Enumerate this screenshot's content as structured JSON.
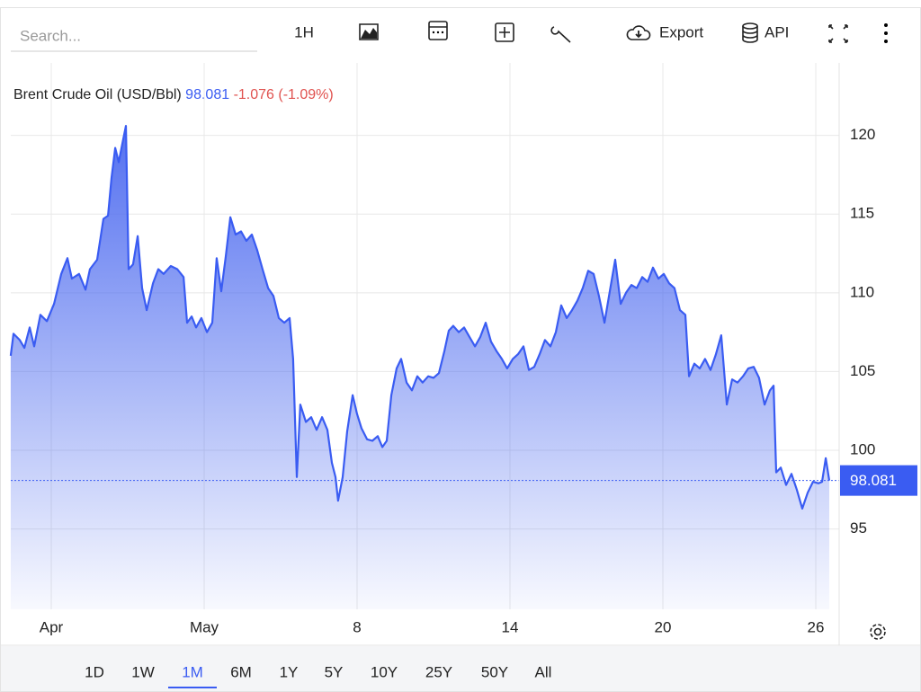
{
  "toolbar": {
    "search_placeholder": "Search...",
    "interval": "1H",
    "export": "Export",
    "api": "API"
  },
  "ranges": {
    "items": [
      "1D",
      "1W",
      "1M",
      "6M",
      "1Y",
      "5Y",
      "10Y",
      "25Y",
      "50Y",
      "All"
    ],
    "active": 2
  },
  "chart_data": {
    "type": "area",
    "title": "Brent Crude Oil (USD/Bbl)",
    "last_value": 98.081,
    "change": "-1.076 (-1.09%)",
    "color": "#3a5cf2",
    "grid": true,
    "x": [
      0.35,
      0.53,
      0.94,
      1.24,
      1.59,
      1.88,
      2.29,
      2.71,
      3.18,
      3.65,
      4.06,
      4.35,
      4.82,
      5.24,
      5.53,
      6.0,
      6.41,
      6.71,
      6.94,
      7.18,
      7.41,
      7.65,
      7.88,
      8.06,
      8.35,
      8.65,
      8.94,
      9.24,
      9.65,
      10.0,
      10.35,
      10.82,
      11.24,
      11.65,
      11.88,
      12.18,
      12.47,
      12.82,
      13.18,
      13.53,
      13.82,
      14.12,
      14.41,
      14.71,
      15.06,
      15.41,
      15.76,
      16.12,
      16.47,
      16.82,
      17.18,
      17.53,
      17.88,
      18.24,
      18.59,
      18.82,
      19.06,
      19.29,
      19.65,
      20.0,
      20.35,
      20.71,
      21.06,
      21.35,
      21.59,
      21.76,
      22.06,
      22.35,
      22.71,
      23.0,
      23.29,
      23.65,
      24.0,
      24.35,
      24.65,
      24.94,
      25.24,
      25.59,
      25.88,
      26.24,
      26.59,
      26.94,
      27.29,
      27.65,
      28.0,
      28.35,
      28.71,
      29.0,
      29.29,
      29.65,
      30.0,
      30.35,
      30.71,
      31.06,
      31.41,
      31.76,
      32.12,
      32.47,
      32.82,
      33.18,
      33.53,
      33.88,
      34.24,
      34.59,
      34.94,
      35.29,
      35.65,
      36.0,
      36.35,
      36.71,
      37.06,
      37.41,
      37.76,
      38.12,
      38.47,
      38.82,
      39.18,
      39.53,
      39.88,
      40.24,
      40.59,
      40.94,
      41.29,
      41.65,
      42.0,
      42.35,
      42.71,
      43.06,
      43.41,
      43.76,
      44.12,
      44.47,
      44.71,
      45.06,
      45.41,
      45.76,
      46.12,
      46.47,
      46.82,
      47.18,
      47.53,
      47.88,
      48.24,
      48.59,
      48.94,
      49.29,
      49.65,
      50.0,
      50.24,
      50.41,
      50.71,
      51.06,
      51.41,
      51.76,
      52.12,
      52.47,
      52.82,
      53.18,
      53.41,
      53.65,
      53.88
    ],
    "values": [
      106.0,
      107.4,
      107.0,
      106.5,
      107.8,
      106.6,
      108.6,
      108.2,
      109.3,
      111.2,
      112.2,
      110.9,
      111.2,
      110.2,
      111.5,
      112.1,
      114.7,
      114.9,
      117.3,
      119.2,
      118.3,
      119.5,
      120.6,
      111.5,
      111.8,
      113.6,
      110.3,
      108.9,
      110.6,
      111.5,
      111.2,
      111.7,
      111.5,
      111.0,
      108.1,
      108.5,
      107.8,
      108.4,
      107.5,
      108.1,
      112.2,
      110.1,
      112.3,
      114.8,
      113.7,
      113.9,
      113.3,
      113.7,
      112.7,
      111.5,
      110.3,
      109.8,
      108.4,
      108.1,
      108.4,
      105.8,
      98.3,
      102.9,
      101.8,
      102.1,
      101.3,
      102.1,
      101.3,
      99.2,
      98.3,
      96.8,
      98.3,
      101.2,
      103.5,
      102.3,
      101.4,
      100.7,
      100.6,
      100.9,
      100.2,
      100.6,
      103.5,
      105.2,
      105.8,
      104.3,
      103.8,
      104.7,
      104.3,
      104.7,
      104.6,
      104.9,
      106.3,
      107.6,
      107.9,
      107.5,
      107.8,
      107.2,
      106.6,
      107.2,
      108.1,
      106.9,
      106.3,
      105.8,
      105.2,
      105.8,
      106.1,
      106.6,
      105.1,
      105.3,
      106.1,
      107.0,
      106.6,
      107.5,
      109.2,
      108.4,
      108.9,
      109.5,
      110.3,
      111.4,
      111.2,
      109.8,
      108.1,
      110.1,
      112.1,
      109.3,
      110.0,
      110.5,
      110.3,
      111.0,
      110.7,
      111.6,
      110.9,
      111.2,
      110.6,
      110.3,
      108.9,
      108.6,
      104.7,
      105.5,
      105.2,
      105.8,
      105.1,
      106.1,
      107.3,
      102.9,
      104.5,
      104.3,
      104.7,
      105.2,
      105.3,
      104.6,
      102.9,
      103.8,
      104.1,
      98.6,
      98.9,
      97.8,
      98.5,
      97.5,
      96.3,
      97.3,
      98.0,
      97.9,
      98.0,
      99.5,
      98.081
    ],
    "xlim": [
      0,
      54.5
    ],
    "xticks": [
      {
        "value": 3,
        "label": "Apr"
      },
      {
        "value": 13,
        "label": "May"
      },
      {
        "value": 23,
        "label": "8"
      },
      {
        "value": 33,
        "label": "14"
      },
      {
        "value": 43,
        "label": "20"
      },
      {
        "value": 53,
        "label": "26"
      }
    ],
    "ylim": [
      89.9,
      124.6
    ],
    "yticks": [
      95,
      100,
      105,
      110,
      115,
      120
    ]
  }
}
